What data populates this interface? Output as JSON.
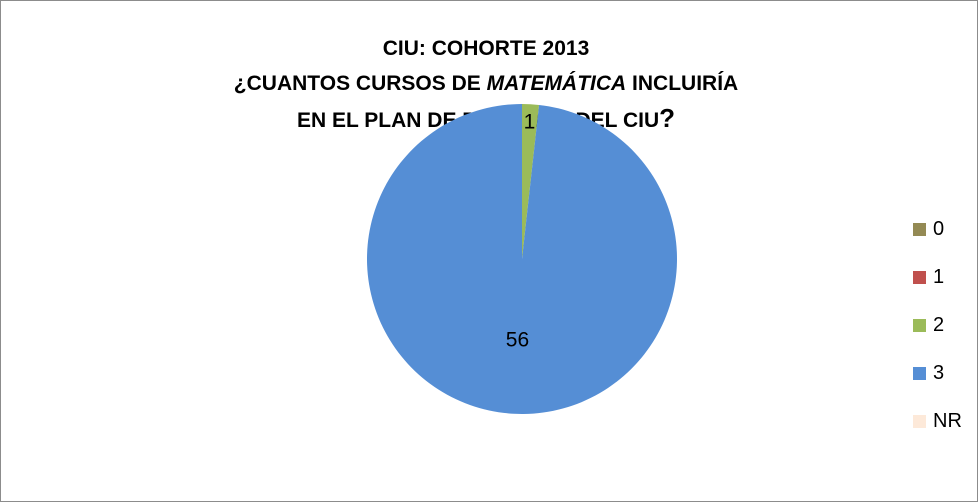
{
  "chart_data": {
    "type": "pie",
    "title_lines": [
      "CIU: COHORTE 2013",
      [
        "¿CUANTOS CURSOS DE ",
        "MATEMÁTICA",
        " INCLUIRÍA"
      ],
      [
        "EN EL PLAN DE ESTUDIOS DEL CIU",
        "?"
      ]
    ],
    "categories": [
      "0",
      "1",
      "2",
      "3",
      "NR"
    ],
    "values": [
      0,
      0,
      1,
      56,
      0
    ],
    "data_labels": [
      "",
      "",
      "1",
      "56",
      ""
    ],
    "colors": [
      "#948a54",
      "#c0504d",
      "#9bbb59",
      "#558ed5",
      "#fde9d9"
    ],
    "legend_position": "right"
  }
}
